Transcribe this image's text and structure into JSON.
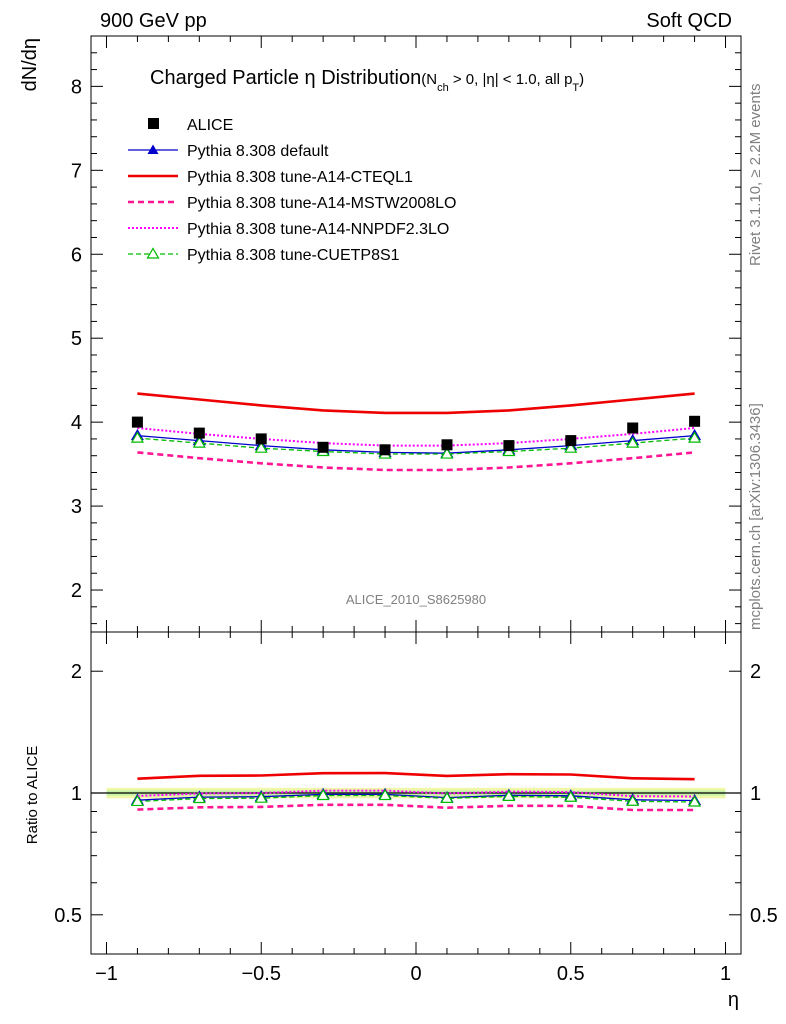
{
  "header": {
    "left": "900 GeV pp",
    "right": "Soft QCD"
  },
  "side_labels": {
    "rivet": "Rivet 3.1.10, ≥ 2.2M events",
    "mcplots": "mcplots.cern.ch [arXiv:1306.3436]"
  },
  "watermark": "ALICE_2010_S8625980",
  "chart_data": [
    {
      "type": "line",
      "title": "Charged Particle η Distribution",
      "title_cut": {
        "open": "(N",
        "sub": "ch",
        "mid": " > 0, |η| < 1.0, all p",
        "sub2": "T",
        "close": ")"
      },
      "ylabel": "dN/dη",
      "xlabel": "η",
      "xlim": [
        -1.05,
        1.05
      ],
      "ylim": [
        1.5,
        8.6
      ],
      "x_ticks": [
        "−1",
        "−0.5",
        "0",
        "0.5",
        "1"
      ],
      "y_ticks": [
        "2",
        "3",
        "4",
        "5",
        "6",
        "7",
        "8"
      ],
      "x": [
        -0.9,
        -0.7,
        -0.5,
        -0.3,
        -0.1,
        0.1,
        0.3,
        0.5,
        0.7,
        0.9
      ],
      "series": [
        {
          "name": "ALICE",
          "color": "#000000",
          "style": "data",
          "values": [
            4.0,
            3.87,
            3.8,
            3.7,
            3.67,
            3.73,
            3.72,
            3.78,
            3.93,
            4.01
          ]
        },
        {
          "name": "Pythia 8.308 default",
          "color": "#0000cc",
          "style": "solid-triangle",
          "values": [
            3.84,
            3.78,
            3.72,
            3.67,
            3.64,
            3.63,
            3.67,
            3.72,
            3.78,
            3.84
          ]
        },
        {
          "name": "Pythia 8.308 tune-A14-CTEQL1",
          "color": "#ee0000",
          "style": "solid-thick",
          "values": [
            4.34,
            4.27,
            4.2,
            4.14,
            4.11,
            4.11,
            4.14,
            4.2,
            4.27,
            4.34
          ]
        },
        {
          "name": "Pythia 8.308 tune-A14-MSTW2008LO",
          "color": "#ff1493",
          "style": "dashed-thick",
          "values": [
            3.64,
            3.57,
            3.51,
            3.46,
            3.43,
            3.43,
            3.46,
            3.51,
            3.57,
            3.64
          ]
        },
        {
          "name": "Pythia 8.308 tune-A14-NNPDF2.3LO",
          "color": "#ff00ff",
          "style": "dotted",
          "values": [
            3.93,
            3.86,
            3.8,
            3.75,
            3.72,
            3.72,
            3.75,
            3.8,
            3.86,
            3.93
          ]
        },
        {
          "name": "Pythia 8.308 tune-CUETP8S1",
          "color": "#00bb00",
          "style": "dashed-open-triangle",
          "values": [
            3.81,
            3.75,
            3.69,
            3.65,
            3.62,
            3.62,
            3.65,
            3.69,
            3.75,
            3.81
          ]
        }
      ]
    },
    {
      "type": "line",
      "ylabel": "Ratio to ALICE",
      "xlabel": "η",
      "xlim": [
        -1.05,
        1.05
      ],
      "ylim": [
        0.4,
        2.5
      ],
      "y_scale": "log",
      "x_ticks": [
        "−1",
        "−0.5",
        "0",
        "0.5",
        "1"
      ],
      "y_ticks": [
        "0.5",
        "1",
        "2"
      ],
      "x": [
        -0.9,
        -0.7,
        -0.5,
        -0.3,
        -0.1,
        0.1,
        0.3,
        0.5,
        0.7,
        0.9
      ],
      "band": {
        "inner": [
          0.985,
          1.015
        ],
        "outer": [
          0.97,
          1.03
        ]
      },
      "series": [
        {
          "name": "Pythia 8.308 default",
          "color": "#0000cc",
          "style": "solid-triangle",
          "values": [
            0.96,
            0.977,
            0.979,
            0.992,
            0.992,
            0.974,
            0.987,
            0.984,
            0.962,
            0.958
          ]
        },
        {
          "name": "Pythia 8.308 tune-A14-CTEQL1",
          "color": "#ee0000",
          "style": "solid-thick",
          "values": [
            1.085,
            1.103,
            1.105,
            1.119,
            1.12,
            1.102,
            1.113,
            1.111,
            1.087,
            1.082
          ]
        },
        {
          "name": "Pythia 8.308 tune-A14-MSTW2008LO",
          "color": "#ff1493",
          "style": "dashed-thick",
          "values": [
            0.91,
            0.922,
            0.924,
            0.935,
            0.935,
            0.92,
            0.93,
            0.929,
            0.908,
            0.908
          ]
        },
        {
          "name": "Pythia 8.308 tune-A14-NNPDF2.3LO",
          "color": "#ff00ff",
          "style": "dotted",
          "values": [
            0.983,
            0.997,
            1.0,
            1.014,
            1.014,
            0.997,
            1.008,
            1.005,
            0.982,
            0.98
          ]
        },
        {
          "name": "Pythia 8.308 tune-CUETP8S1",
          "color": "#00bb00",
          "style": "dashed-open-triangle",
          "values": [
            0.953,
            0.969,
            0.971,
            0.986,
            0.986,
            0.97,
            0.981,
            0.976,
            0.954,
            0.95
          ]
        }
      ]
    }
  ]
}
